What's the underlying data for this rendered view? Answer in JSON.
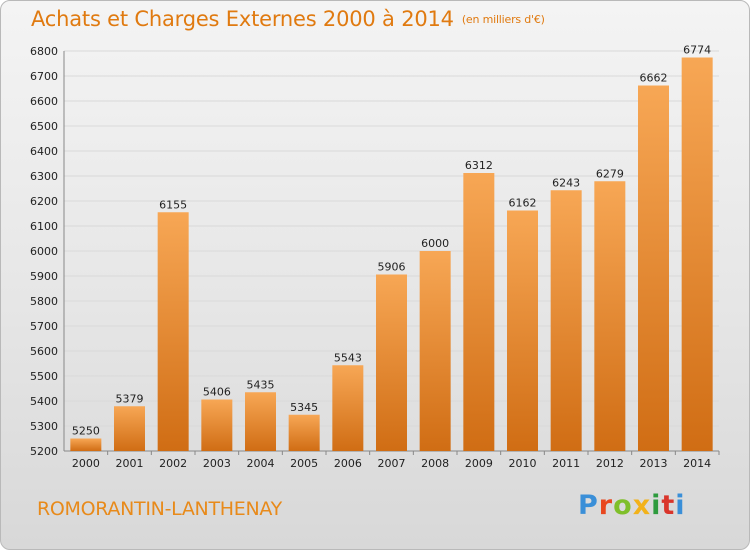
{
  "header": {
    "title": "Achats et Charges Externes 2000 à 2014",
    "unit": "(en milliers d'€)"
  },
  "footer": {
    "place": "ROMORANTIN-LANTHENAY",
    "logo": "Proxiti"
  },
  "colors": {
    "title": "#e07a10",
    "bar_light": "#f7a755",
    "bar_dark": "#d06d14",
    "grid": "#d9d9d9"
  },
  "chart_data": {
    "type": "bar",
    "title": "Achats et Charges Externes 2000 à 2014",
    "subtitle": "(en milliers d'€)",
    "categories": [
      "2000",
      "2001",
      "2002",
      "2003",
      "2004",
      "2005",
      "2006",
      "2007",
      "2008",
      "2009",
      "2010",
      "2011",
      "2012",
      "2013",
      "2014"
    ],
    "values": [
      5250,
      5379,
      6155,
      5406,
      5435,
      5345,
      5543,
      5906,
      6000,
      6312,
      6162,
      6243,
      6279,
      6662,
      6774
    ],
    "xlabel": "",
    "ylabel": "",
    "ylim": [
      5200,
      6800
    ],
    "yticks": [
      5200,
      5300,
      5400,
      5500,
      5600,
      5700,
      5800,
      5900,
      6000,
      6100,
      6200,
      6300,
      6400,
      6500,
      6600,
      6700,
      6800
    ],
    "grid": true,
    "legend": "none"
  }
}
